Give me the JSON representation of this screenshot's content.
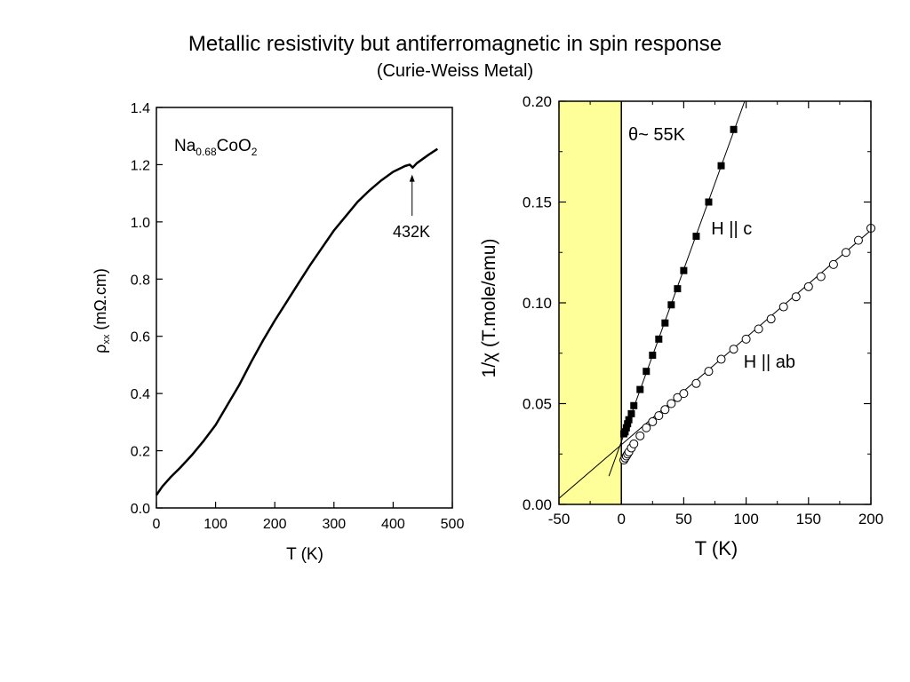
{
  "slide": {
    "title": "Metallic resistivity but antiferromagnetic in spin response",
    "subtitle": "(Curie-Weiss Metal)"
  },
  "chart_data": [
    {
      "type": "line",
      "compound": {
        "base": "Na",
        "sub1": "0.68",
        "mid": "CoO",
        "sub2": "2"
      },
      "xlabel": "T (K)",
      "ylabel": {
        "symbol": "ρ",
        "sub": "xx",
        "rest": " (mΩ.cm)"
      },
      "xlim": [
        0,
        500
      ],
      "ylim": [
        0.0,
        1.4
      ],
      "xticks": [
        0,
        100,
        200,
        300,
        400,
        500
      ],
      "xtick_labels": [
        "0",
        "100",
        "200",
        "300",
        "400",
        "500"
      ],
      "yticks": [
        0.0,
        0.2,
        0.4,
        0.6,
        0.8,
        1.0,
        1.2,
        1.4
      ],
      "ytick_labels": [
        "0.0",
        "0.2",
        "0.4",
        "0.6",
        "0.8",
        "1.0",
        "1.2",
        "1.4"
      ],
      "grid": false,
      "series": [
        {
          "x": [
            0,
            10,
            25,
            40,
            60,
            80,
            100,
            120,
            140,
            160,
            180,
            200,
            220,
            240,
            260,
            280,
            300,
            320,
            340,
            360,
            380,
            400,
            420,
            428,
            433,
            440,
            460,
            475
          ],
          "y": [
            0.045,
            0.075,
            0.11,
            0.14,
            0.185,
            0.235,
            0.29,
            0.36,
            0.43,
            0.51,
            0.585,
            0.655,
            0.72,
            0.785,
            0.85,
            0.91,
            0.97,
            1.02,
            1.07,
            1.11,
            1.145,
            1.175,
            1.195,
            1.2,
            1.19,
            1.205,
            1.235,
            1.255
          ]
        }
      ],
      "annotation": {
        "label": "432K",
        "x": 432,
        "y": 1.19
      }
    },
    {
      "type": "scatter",
      "xlabel": "T (K)",
      "ylabel": "1/χ (T.mole/emu)",
      "xlim": [
        -50,
        200
      ],
      "ylim": [
        0.0,
        0.2
      ],
      "xticks": [
        -50,
        0,
        50,
        100,
        150,
        200
      ],
      "xtick_labels": [
        "-50",
        "0",
        "50",
        "100",
        "150",
        "200"
      ],
      "yticks": [
        0.0,
        0.05,
        0.1,
        0.15,
        0.2
      ],
      "ytick_labels": [
        "0.00",
        "0.05",
        "0.10",
        "0.15",
        "0.20"
      ],
      "grid": false,
      "shaded_region": {
        "x": [
          -50,
          0
        ],
        "color": "#ffff99"
      },
      "annotation": "θ~ 55K",
      "series": [
        {
          "name": "H || c",
          "marker": "filled-square",
          "x": [
            2,
            3,
            4,
            5,
            6,
            8,
            10,
            15,
            20,
            25,
            30,
            35,
            40,
            45,
            50,
            60,
            70,
            80,
            90
          ],
          "y": [
            0.035,
            0.036,
            0.038,
            0.04,
            0.042,
            0.045,
            0.049,
            0.057,
            0.066,
            0.074,
            0.082,
            0.09,
            0.099,
            0.107,
            0.116,
            0.133,
            0.15,
            0.168,
            0.186
          ],
          "fit": {
            "x": [
              -10,
              100
            ],
            "y": [
              0.014,
              0.202
            ]
          }
        },
        {
          "name": "H || ab",
          "marker": "open-circle",
          "x": [
            2,
            3,
            4,
            5,
            6,
            8,
            10,
            15,
            20,
            25,
            30,
            35,
            40,
            45,
            50,
            60,
            70,
            80,
            90,
            100,
            110,
            120,
            130,
            140,
            150,
            160,
            170,
            180,
            190,
            200
          ],
          "y": [
            0.022,
            0.023,
            0.024,
            0.025,
            0.026,
            0.028,
            0.03,
            0.034,
            0.038,
            0.041,
            0.044,
            0.047,
            0.05,
            0.053,
            0.055,
            0.06,
            0.066,
            0.072,
            0.077,
            0.082,
            0.087,
            0.092,
            0.098,
            0.103,
            0.108,
            0.113,
            0.119,
            0.125,
            0.131,
            0.137
          ],
          "fit": {
            "x": [
              -50,
              200
            ],
            "y": [
              0.003,
              0.136
            ]
          }
        }
      ]
    }
  ]
}
